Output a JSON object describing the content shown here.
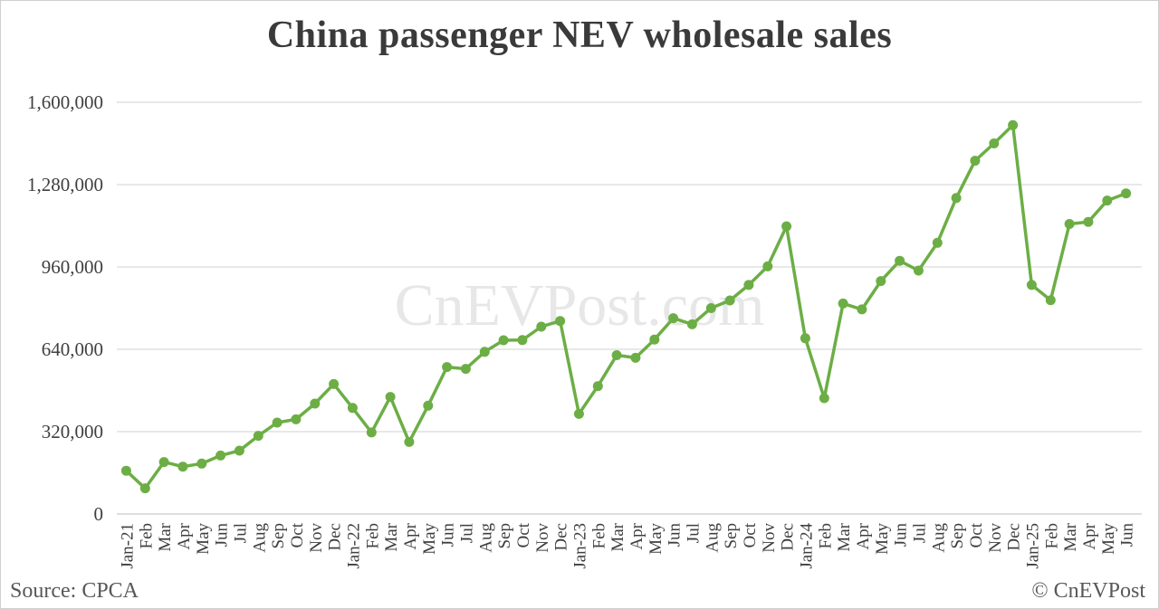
{
  "page": {
    "title": "China passenger NEV wholesale sales"
  },
  "watermark": {
    "text": "CnEVPost.com"
  },
  "footer": {
    "source": "Source: CPCA",
    "copyright": "© CnEVPost"
  },
  "colors": {
    "line": "#6cae45",
    "marker": "#6cae45",
    "grid": "#d9d9d9",
    "baseline": "#c9c9c9",
    "axis_text": "#3f3f3f",
    "title_text": "#3a3a3a",
    "muted_text": "#585858",
    "watermark_text": "#e7e7e7"
  },
  "chart_data": {
    "type": "line",
    "title": "China passenger NEV wholesale sales",
    "xlabel": "",
    "ylabel": "",
    "legend": "none",
    "grid": "horizontal",
    "marker": "circle",
    "ylim": [
      0,
      1600000
    ],
    "yticks": [
      0,
      320000,
      640000,
      960000,
      1280000,
      1600000
    ],
    "ytick_labels": [
      "0",
      "320,000",
      "640,000",
      "960,000",
      "1,280,000",
      "1,600,000"
    ],
    "categories": [
      "Jan-21",
      "Feb",
      "Mar",
      "Apr",
      "May",
      "Jun",
      "Jul",
      "Aug",
      "Sep",
      "Oct",
      "Nov",
      "Dec",
      "Jan-22",
      "Feb",
      "Mar",
      "Apr",
      "May",
      "Jun",
      "Jul",
      "Aug",
      "Sep",
      "Oct",
      "Nov",
      "Dec",
      "Jan-23",
      "Feb",
      "Mar",
      "Apr",
      "May",
      "Jun",
      "Jul",
      "Aug",
      "Sep",
      "Oct",
      "Nov",
      "Dec",
      "Jan-24",
      "Feb",
      "Mar",
      "Apr",
      "May",
      "Jun",
      "Jul",
      "Aug",
      "Sep",
      "Oct",
      "Nov",
      "Dec",
      "Jan-25",
      "Feb",
      "Mar",
      "Apr",
      "May",
      "Jun"
    ],
    "series": [
      {
        "name": "China passenger NEV wholesale sales",
        "color": "#6cae45",
        "values": [
          168000,
          100000,
          202000,
          184000,
          196000,
          227000,
          246000,
          304000,
          355000,
          368000,
          429000,
          505000,
          412000,
          317000,
          455000,
          280000,
          421000,
          571000,
          564000,
          630000,
          675000,
          676000,
          728000,
          750000,
          389000,
          497000,
          617000,
          607000,
          678000,
          761000,
          737000,
          800000,
          830000,
          890000,
          962000,
          1118000,
          683000,
          450000,
          818000,
          795000,
          905000,
          984000,
          946000,
          1054000,
          1228000,
          1373000,
          1440000,
          1511000,
          890000,
          831000,
          1127000,
          1135000,
          1218000,
          1246000
        ]
      }
    ]
  }
}
